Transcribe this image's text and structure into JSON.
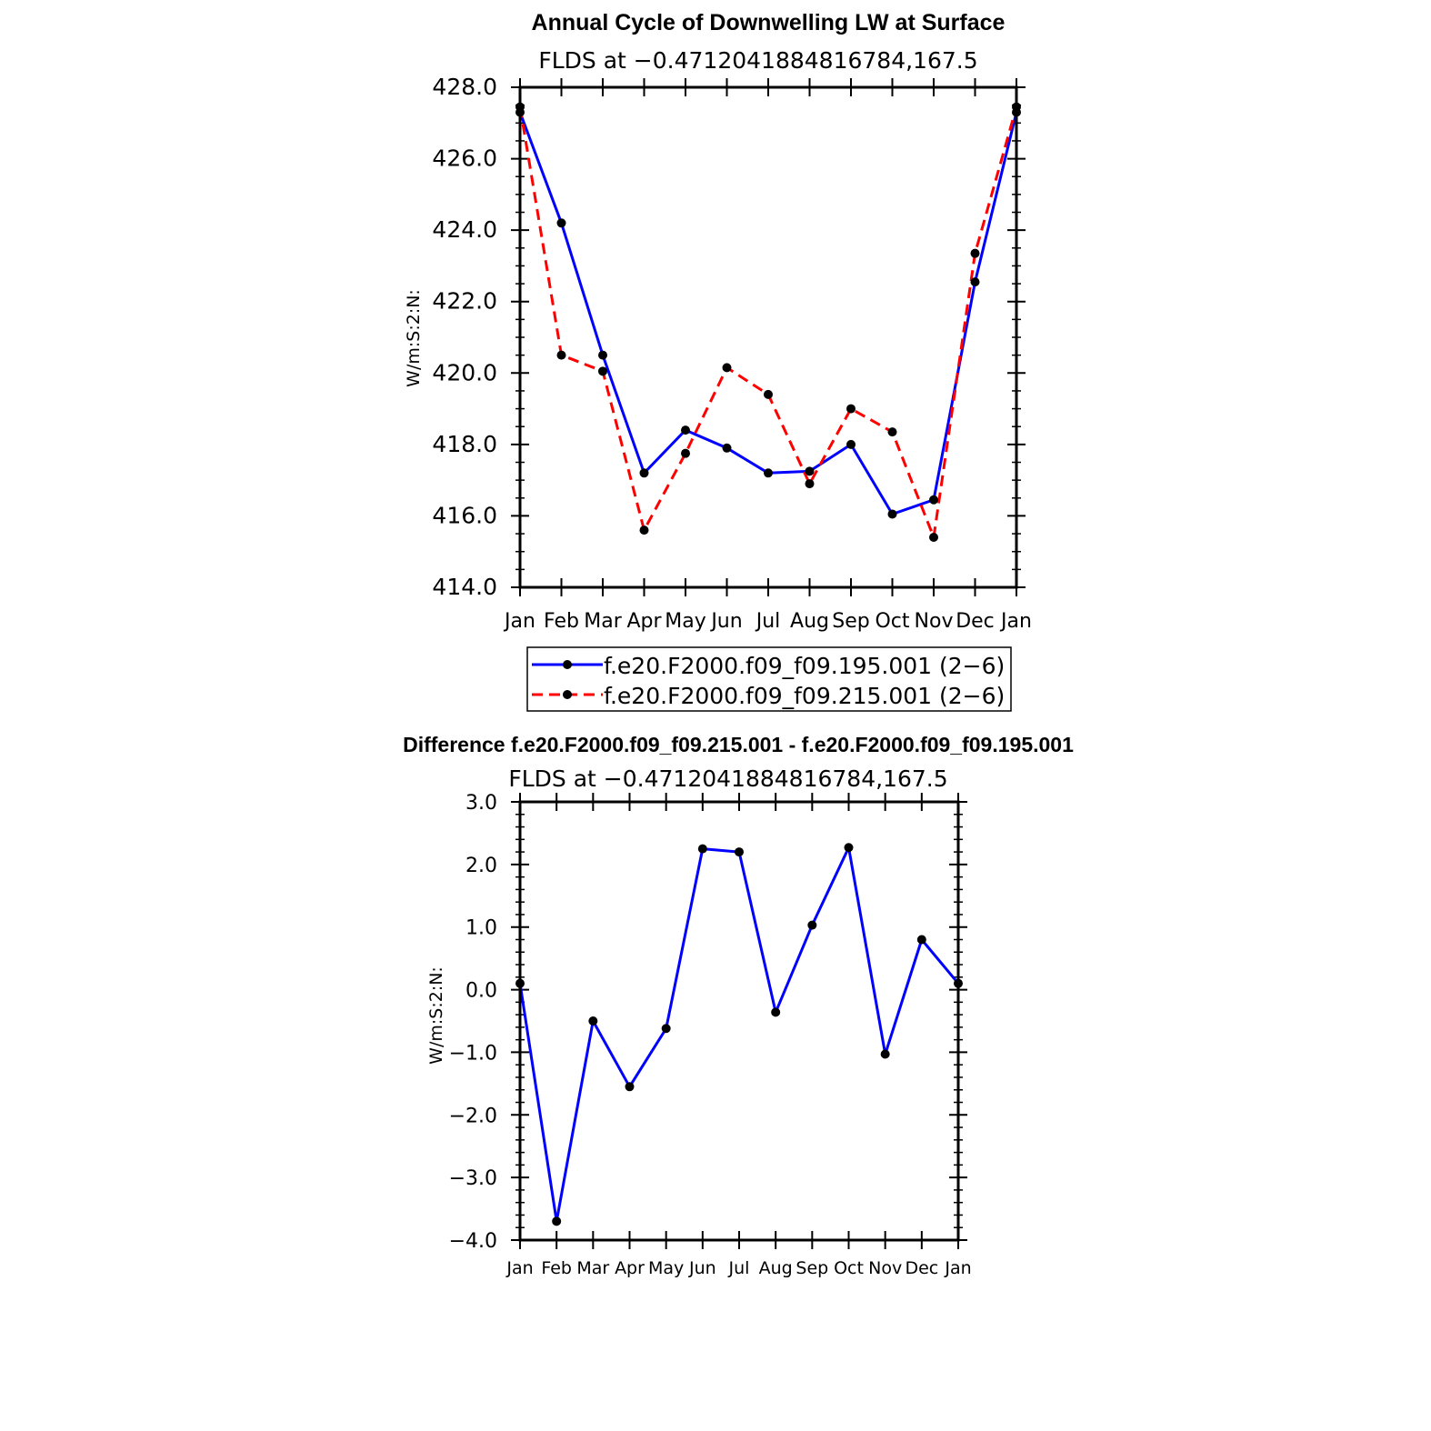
{
  "chart_data": [
    {
      "type": "line",
      "title": "Annual Cycle of Downwelling LW at Surface",
      "subtitle": "FLDS at −0.4712041884816784,167.5",
      "xlabel": "",
      "ylabel": "W/m:S:2:N:",
      "categories": [
        "Jan",
        "Feb",
        "Mar",
        "Apr",
        "May",
        "Jun",
        "Jul",
        "Aug",
        "Sep",
        "Oct",
        "Nov",
        "Dec",
        "Jan"
      ],
      "ylim": [
        414.0,
        428.0
      ],
      "yticks": [
        "414.0",
        "416.0",
        "418.0",
        "420.0",
        "422.0",
        "424.0",
        "426.0",
        "428.0"
      ],
      "series": [
        {
          "name": "f.e20.F2000.f09_f09.195.001 (2−6)",
          "color": "#0000ff",
          "dash": "solid",
          "values": [
            427.3,
            424.2,
            420.5,
            417.2,
            418.4,
            417.9,
            417.2,
            417.25,
            418.0,
            416.05,
            416.45,
            422.55,
            427.3
          ]
        },
        {
          "name": "f.e20.F2000.f09_f09.215.001 (2−6)",
          "color": "#ff0000",
          "dash": "dashed",
          "values": [
            427.45,
            420.5,
            420.05,
            415.6,
            417.75,
            420.15,
            419.4,
            416.9,
            419.0,
            418.35,
            415.4,
            423.35,
            427.45
          ]
        }
      ],
      "legend_position": "below"
    },
    {
      "type": "line",
      "title": "Difference f.e20.F2000.f09_f09.215.001 - f.e20.F2000.f09_f09.195.001",
      "subtitle": "FLDS at −0.4712041884816784,167.5",
      "xlabel": "",
      "ylabel": "W/m:S:2:N:",
      "categories": [
        "Jan",
        "Feb",
        "Mar",
        "Apr",
        "May",
        "Jun",
        "Jul",
        "Aug",
        "Sep",
        "Oct",
        "Nov",
        "Dec",
        "Jan"
      ],
      "ylim": [
        -4.0,
        3.0
      ],
      "yticks": [
        "−4.0",
        "−3.0",
        "−2.0",
        "−1.0",
        "0.0",
        "1.0",
        "2.0",
        "3.0"
      ],
      "series": [
        {
          "name": "difference",
          "color": "#0000ff",
          "dash": "solid",
          "values": [
            0.1,
            -3.7,
            -0.5,
            -1.55,
            -0.62,
            2.25,
            2.2,
            -0.36,
            1.03,
            2.27,
            -1.03,
            0.8,
            0.1
          ]
        }
      ]
    }
  ]
}
